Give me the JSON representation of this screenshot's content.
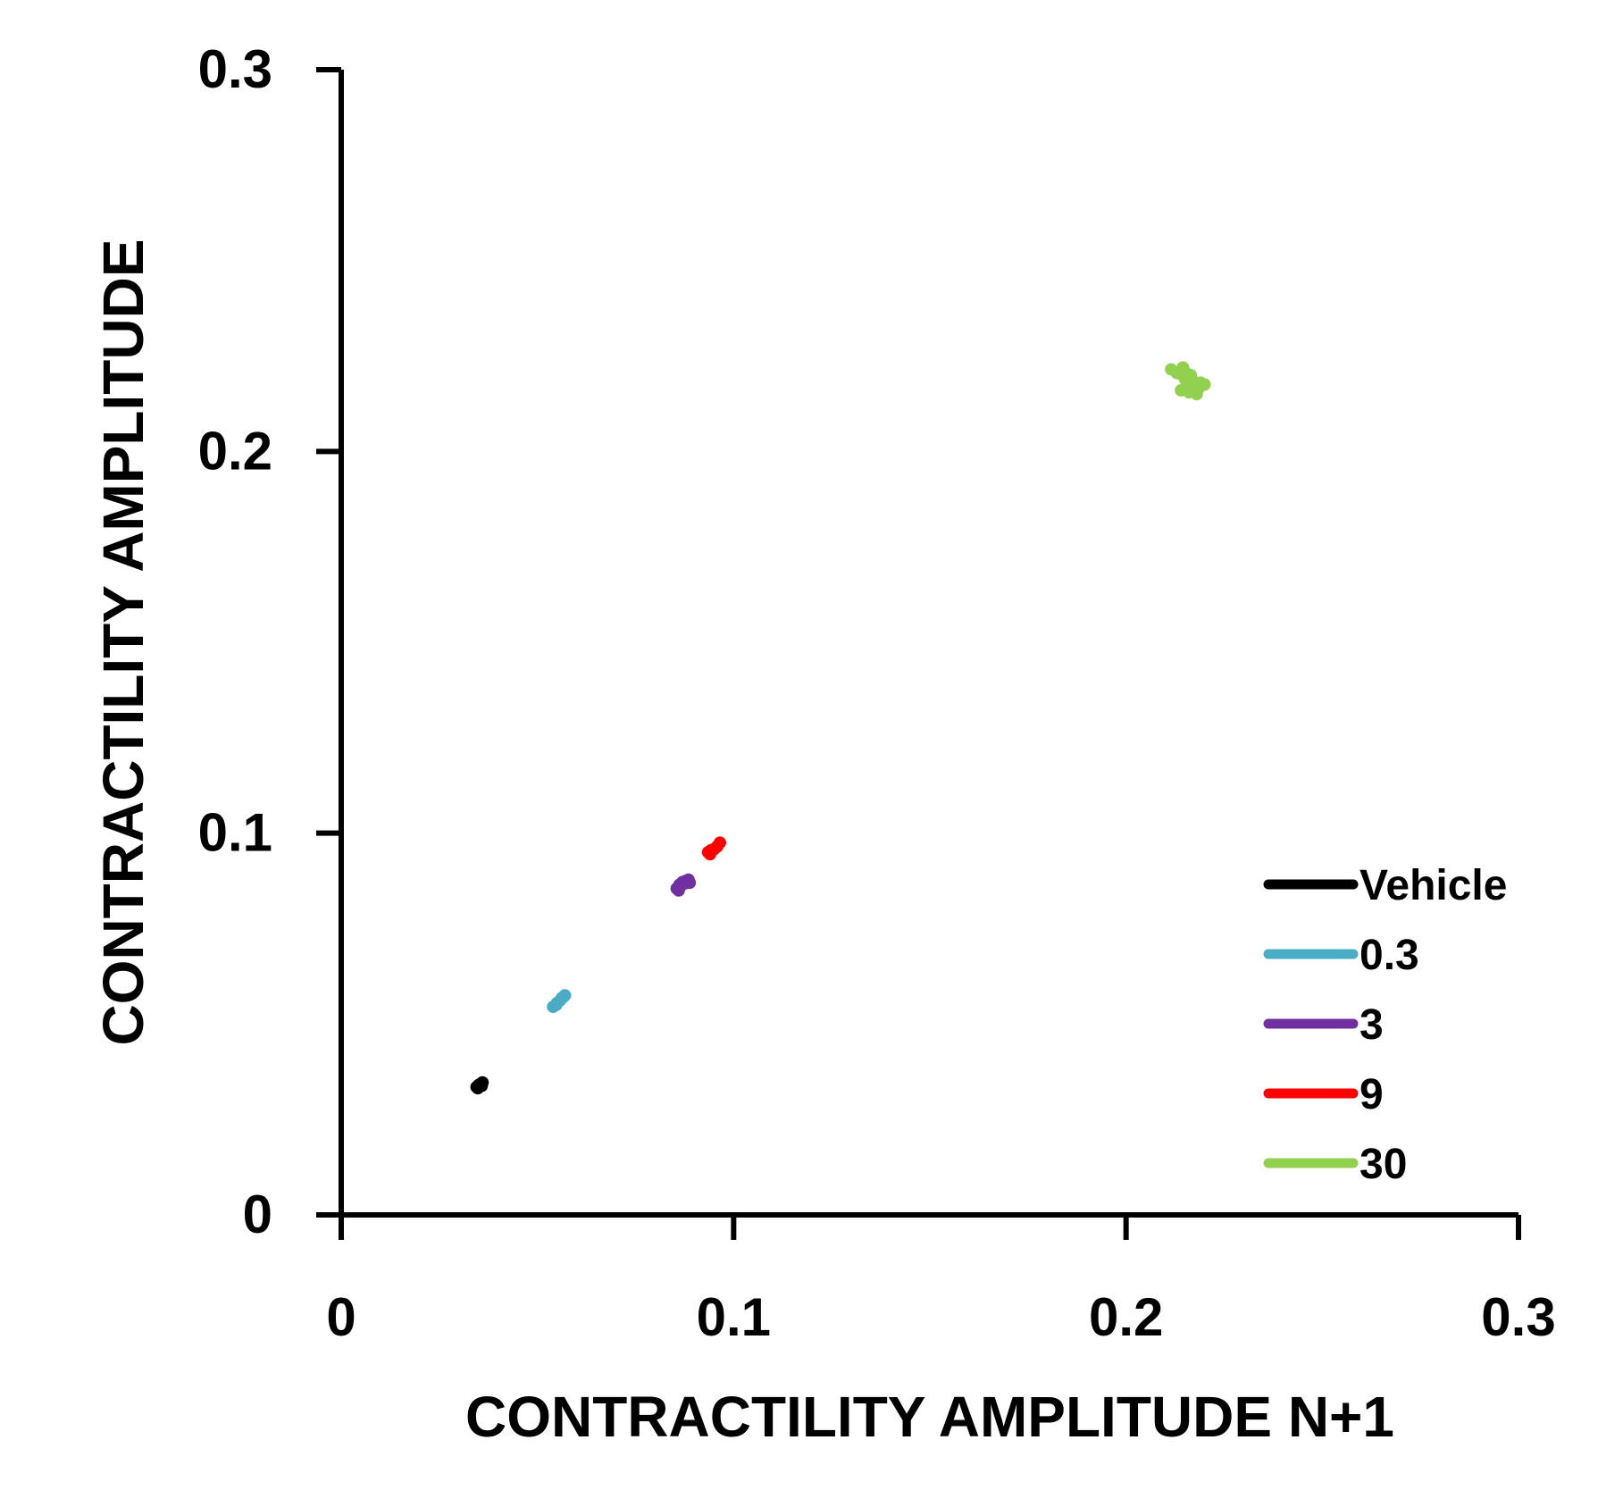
{
  "chart_data": {
    "type": "scatter",
    "title": "",
    "xlabel": "CONTRACTILITY AMPLITUDE N+1",
    "ylabel": "CONTRACTILITY AMPLITUDE",
    "xlim": [
      0,
      0.3
    ],
    "ylim": [
      0,
      0.3
    ],
    "xticks": [
      "0",
      "0.1",
      "0.2",
      "0.3"
    ],
    "yticks": [
      "0",
      "0.1",
      "0.2",
      "0.3"
    ],
    "grid": false,
    "legend_position": "bottom-right",
    "series": [
      {
        "name": "Vehicle",
        "color": "#000000",
        "points": [
          [
            0.0345,
            0.0335
          ],
          [
            0.035,
            0.034
          ],
          [
            0.0355,
            0.0343
          ],
          [
            0.036,
            0.0347
          ],
          [
            0.0348,
            0.0332
          ],
          [
            0.0358,
            0.0338
          ]
        ]
      },
      {
        "name": "0.3",
        "color": "#4BACC6",
        "points": [
          [
            0.054,
            0.0545
          ],
          [
            0.055,
            0.0555
          ],
          [
            0.0558,
            0.0562
          ],
          [
            0.0565,
            0.057
          ],
          [
            0.057,
            0.0575
          ],
          [
            0.0548,
            0.055
          ],
          [
            0.0562,
            0.0568
          ]
        ]
      },
      {
        "name": "3",
        "color": "#7030A0",
        "points": [
          [
            0.0855,
            0.0855
          ],
          [
            0.0862,
            0.0865
          ],
          [
            0.087,
            0.0872
          ],
          [
            0.0878,
            0.0875
          ],
          [
            0.0885,
            0.0878
          ],
          [
            0.086,
            0.085
          ],
          [
            0.0875,
            0.0868
          ],
          [
            0.0888,
            0.087
          ]
        ]
      },
      {
        "name": "9",
        "color": "#FF0000",
        "points": [
          [
            0.0935,
            0.095
          ],
          [
            0.0942,
            0.0955
          ],
          [
            0.095,
            0.0958
          ],
          [
            0.0958,
            0.0965
          ],
          [
            0.0965,
            0.0975
          ],
          [
            0.094,
            0.0945
          ]
        ]
      },
      {
        "name": "30",
        "color": "#92D050",
        "points": [
          [
            0.2115,
            0.2215
          ],
          [
            0.213,
            0.2205
          ],
          [
            0.215,
            0.219
          ],
          [
            0.217,
            0.2185
          ],
          [
            0.219,
            0.218
          ],
          [
            0.22,
            0.2175
          ],
          [
            0.214,
            0.216
          ],
          [
            0.216,
            0.2155
          ],
          [
            0.218,
            0.215
          ],
          [
            0.2165,
            0.22
          ],
          [
            0.2145,
            0.222
          ],
          [
            0.2185,
            0.2165
          ],
          [
            0.2155,
            0.2175
          ]
        ]
      }
    ]
  }
}
